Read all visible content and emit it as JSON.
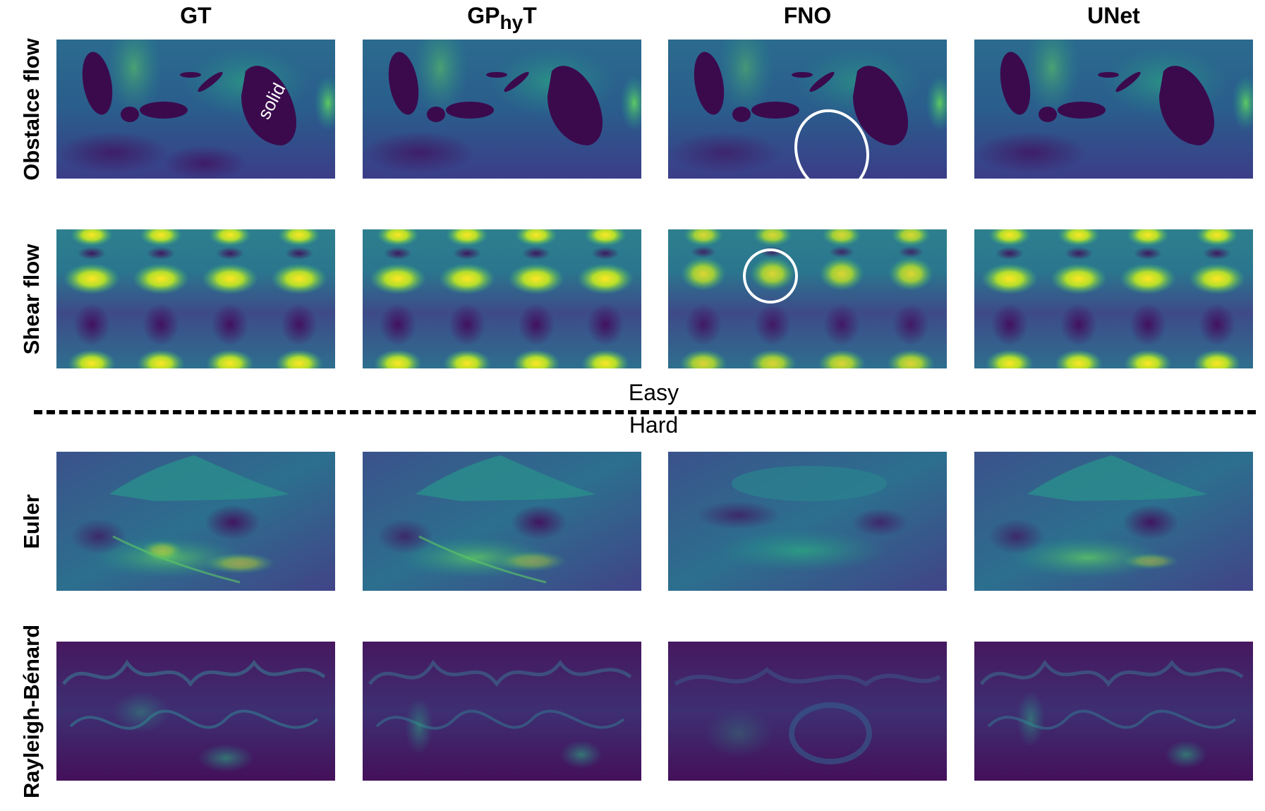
{
  "columns": {
    "gt": "GT",
    "gphyt_main": "GP",
    "gphyt_sub": "hy",
    "gphyt_end": "T",
    "fno": "FNO",
    "unet": "UNet"
  },
  "rows": {
    "obstacle": "Obstalce flow",
    "shear": "Shear flow",
    "euler": "Euler",
    "rb": "Rayleigh-Bénard"
  },
  "divider": {
    "easy": "Easy",
    "hard": "Hard"
  },
  "annotation": {
    "solid": "solid"
  },
  "colors": {
    "colormap_low": "#440154",
    "colormap_mid": "#21918c",
    "colormap_high": "#fde725",
    "solid_obstacle": "#3b0a4d",
    "highlight_circle": "#ffffff"
  }
}
